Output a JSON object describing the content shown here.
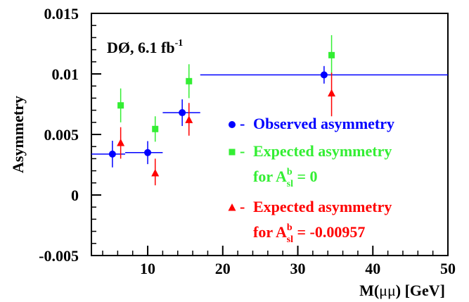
{
  "chart_data": {
    "type": "scatter",
    "title": "",
    "xlabel_main": "M(",
    "xlabel_mu": "μμ",
    "xlabel_unit": ") [GeV]",
    "ylabel": "Asymmetry",
    "xlim": [
      2.5,
      50
    ],
    "ylim": [
      -0.005,
      0.015
    ],
    "x_ticks": [
      10,
      20,
      30,
      40,
      50
    ],
    "x_tick_labels": [
      "10",
      "20",
      "30",
      "40",
      "50"
    ],
    "y_ticks": [
      -0.005,
      0,
      0.005,
      0.01,
      0.015
    ],
    "y_tick_labels": [
      "-0.005",
      "0",
      "0.005",
      "0.01",
      "0.015"
    ],
    "annotation": {
      "main": "DØ, 6.1 fb",
      "sup": "-1"
    },
    "legend": [
      {
        "marker": "circle",
        "color": "#0000ff",
        "lines": [
          {
            "text": "Observed asymmetry"
          }
        ]
      },
      {
        "marker": "square",
        "color": "#33ee33",
        "lines": [
          {
            "text": "Expected asymmetry"
          },
          {
            "main": "for A",
            "sup": "b",
            "sub": "sl",
            "tail": " = 0"
          }
        ]
      },
      {
        "marker": "triangle",
        "color": "#ff0000",
        "lines": [
          {
            "text": "Expected asymmetry"
          },
          {
            "main": "for A",
            "sup": "b",
            "sub": "sl",
            "tail": " = -0.00957"
          }
        ]
      }
    ],
    "series": [
      {
        "marker": "circle",
        "color": "#0000ff",
        "points": [
          {
            "x": 5.3,
            "y": 0.00338,
            "xlo": 2.5,
            "xhi": 7.0,
            "ylo": 0.00228,
            "yhi": 0.00448
          },
          {
            "x": 10.0,
            "y": 0.0035,
            "xlo": 7.0,
            "xhi": 12.0,
            "ylo": 0.00255,
            "yhi": 0.00445
          },
          {
            "x": 14.6,
            "y": 0.0068,
            "xlo": 12.0,
            "xhi": 17.0,
            "ylo": 0.0057,
            "yhi": 0.0079
          },
          {
            "x": 33.5,
            "y": 0.00992,
            "xlo": 17.0,
            "xhi": 50.0,
            "ylo": 0.0092,
            "yhi": 0.01065
          }
        ]
      },
      {
        "marker": "square",
        "color": "#33ee33",
        "points": [
          {
            "x": 6.4,
            "y": 0.0074,
            "ylo": 0.006,
            "yhi": 0.0088
          },
          {
            "x": 11.0,
            "y": 0.00545,
            "ylo": 0.0044,
            "yhi": 0.0065
          },
          {
            "x": 15.5,
            "y": 0.0094,
            "ylo": 0.008,
            "yhi": 0.0108
          },
          {
            "x": 34.5,
            "y": 0.01155,
            "ylo": 0.0099,
            "yhi": 0.0132
          }
        ]
      },
      {
        "marker": "triangle",
        "color": "#ff0000",
        "points": [
          {
            "x": 6.4,
            "y": 0.0043,
            "ylo": 0.003,
            "yhi": 0.0056
          },
          {
            "x": 11.0,
            "y": 0.0018,
            "ylo": 0.0008,
            "yhi": 0.003
          },
          {
            "x": 15.5,
            "y": 0.0062,
            "ylo": 0.0049,
            "yhi": 0.0076
          },
          {
            "x": 34.5,
            "y": 0.0084,
            "ylo": 0.0065,
            "yhi": 0.0101
          }
        ]
      }
    ]
  }
}
